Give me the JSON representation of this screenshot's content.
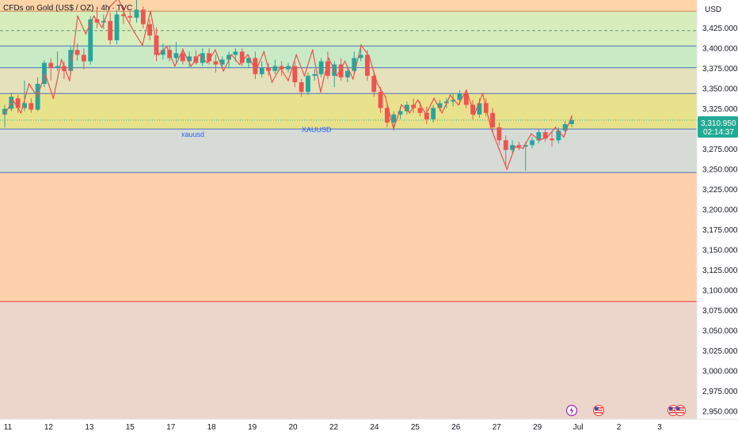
{
  "chart_title": "CFDs on Gold (US$ / OZ) · 4h · TVC",
  "currency": "USD",
  "last_price": "3,310.950",
  "countdown": "02:14:37",
  "zone_labels": [
    "xauusd",
    "XAUUSD"
  ],
  "colors": {
    "up": "#26a69a",
    "down": "#ef5350",
    "price_tag": "#22ab94",
    "level_line": "#2962ff",
    "support_line": "#f23645",
    "zigzag": "#f0504f"
  },
  "chart_data": {
    "type": "candlestick",
    "symbol": "XAUUSD",
    "interval": "4h",
    "ylim": [
      2940,
      3460
    ],
    "y_ticks": [
      "3,425.000",
      "3,400.000",
      "3,375.000",
      "3,350.000",
      "3,325.000",
      "3,300.000",
      "3,275.000",
      "3,250.000",
      "3,225.000",
      "3,200.000",
      "3,175.000",
      "3,150.000",
      "3,125.000",
      "3,100.000",
      "3,075.000",
      "3,050.000",
      "3,025.000",
      "3,000.000",
      "2,975.000",
      "2,950.000"
    ],
    "x_ticks": [
      "11",
      "12",
      "13",
      "15",
      "17",
      "18",
      "19",
      "20",
      "22",
      "24",
      "25",
      "26",
      "27",
      "29",
      "Jul",
      "2",
      "3"
    ],
    "levels": [
      3446,
      3422,
      3403,
      3376,
      3344,
      3300,
      3246,
      3086
    ],
    "zones": [
      {
        "from": 3446,
        "to": 3460,
        "color": "#fdd5a8"
      },
      {
        "from": 3403,
        "to": 3446,
        "color": "#d8edbc"
      },
      {
        "from": 3376,
        "to": 3403,
        "color": "#c8ebc6"
      },
      {
        "from": 3344,
        "to": 3376,
        "color": "#e4e1bb"
      },
      {
        "from": 3300,
        "to": 3344,
        "color": "#e9e28d"
      },
      {
        "from": 3246,
        "to": 3300,
        "color": "#d6dbd5"
      },
      {
        "from": 3086,
        "to": 3246,
        "color": "#fdd1ab"
      },
      {
        "from": 2940,
        "to": 3086,
        "color": "#ecd6cc"
      }
    ],
    "candles": [
      {
        "o": 3318,
        "h": 3330,
        "l": 3302,
        "c": 3325
      },
      {
        "o": 3325,
        "h": 3345,
        "l": 3322,
        "c": 3340
      },
      {
        "o": 3338,
        "h": 3342,
        "l": 3320,
        "c": 3326
      },
      {
        "o": 3326,
        "h": 3360,
        "l": 3322,
        "c": 3332
      },
      {
        "o": 3332,
        "h": 3338,
        "l": 3320,
        "c": 3324
      },
      {
        "o": 3324,
        "h": 3364,
        "l": 3322,
        "c": 3356
      },
      {
        "o": 3356,
        "h": 3385,
        "l": 3352,
        "c": 3382
      },
      {
        "o": 3382,
        "h": 3388,
        "l": 3360,
        "c": 3376
      },
      {
        "o": 3376,
        "h": 3396,
        "l": 3372,
        "c": 3378
      },
      {
        "o": 3378,
        "h": 3384,
        "l": 3362,
        "c": 3372
      },
      {
        "o": 3372,
        "h": 3402,
        "l": 3368,
        "c": 3398
      },
      {
        "o": 3398,
        "h": 3406,
        "l": 3385,
        "c": 3392
      },
      {
        "o": 3392,
        "h": 3400,
        "l": 3374,
        "c": 3384
      },
      {
        "o": 3384,
        "h": 3440,
        "l": 3380,
        "c": 3436
      },
      {
        "o": 3436,
        "h": 3452,
        "l": 3425,
        "c": 3432
      },
      {
        "o": 3432,
        "h": 3442,
        "l": 3424,
        "c": 3434
      },
      {
        "o": 3434,
        "h": 3444,
        "l": 3405,
        "c": 3410
      },
      {
        "o": 3410,
        "h": 3448,
        "l": 3405,
        "c": 3442
      },
      {
        "o": 3442,
        "h": 3452,
        "l": 3430,
        "c": 3440
      },
      {
        "o": 3440,
        "h": 3446,
        "l": 3432,
        "c": 3438
      },
      {
        "o": 3438,
        "h": 3462,
        "l": 3432,
        "c": 3448
      },
      {
        "o": 3448,
        "h": 3452,
        "l": 3425,
        "c": 3430
      },
      {
        "o": 3430,
        "h": 3436,
        "l": 3410,
        "c": 3416
      },
      {
        "o": 3416,
        "h": 3426,
        "l": 3384,
        "c": 3392
      },
      {
        "o": 3392,
        "h": 3406,
        "l": 3386,
        "c": 3398
      },
      {
        "o": 3398,
        "h": 3404,
        "l": 3384,
        "c": 3388
      },
      {
        "o": 3388,
        "h": 3408,
        "l": 3382,
        "c": 3394
      },
      {
        "o": 3394,
        "h": 3400,
        "l": 3380,
        "c": 3384
      },
      {
        "o": 3384,
        "h": 3396,
        "l": 3376,
        "c": 3390
      },
      {
        "o": 3390,
        "h": 3398,
        "l": 3380,
        "c": 3382
      },
      {
        "o": 3382,
        "h": 3400,
        "l": 3378,
        "c": 3394
      },
      {
        "o": 3394,
        "h": 3400,
        "l": 3380,
        "c": 3384
      },
      {
        "o": 3384,
        "h": 3392,
        "l": 3370,
        "c": 3380
      },
      {
        "o": 3380,
        "h": 3390,
        "l": 3374,
        "c": 3386
      },
      {
        "o": 3386,
        "h": 3396,
        "l": 3376,
        "c": 3392
      },
      {
        "o": 3392,
        "h": 3400,
        "l": 3384,
        "c": 3396
      },
      {
        "o": 3396,
        "h": 3400,
        "l": 3378,
        "c": 3382
      },
      {
        "o": 3382,
        "h": 3392,
        "l": 3376,
        "c": 3388
      },
      {
        "o": 3388,
        "h": 3396,
        "l": 3362,
        "c": 3368
      },
      {
        "o": 3368,
        "h": 3384,
        "l": 3364,
        "c": 3376
      },
      {
        "o": 3376,
        "h": 3382,
        "l": 3366,
        "c": 3372
      },
      {
        "o": 3372,
        "h": 3386,
        "l": 3368,
        "c": 3378
      },
      {
        "o": 3378,
        "h": 3384,
        "l": 3366,
        "c": 3374
      },
      {
        "o": 3374,
        "h": 3382,
        "l": 3370,
        "c": 3378
      },
      {
        "o": 3378,
        "h": 3384,
        "l": 3352,
        "c": 3358
      },
      {
        "o": 3358,
        "h": 3362,
        "l": 3340,
        "c": 3346
      },
      {
        "o": 3346,
        "h": 3370,
        "l": 3342,
        "c": 3366
      },
      {
        "o": 3366,
        "h": 3374,
        "l": 3360,
        "c": 3368
      },
      {
        "o": 3368,
        "h": 3388,
        "l": 3364,
        "c": 3384
      },
      {
        "o": 3384,
        "h": 3396,
        "l": 3362,
        "c": 3366
      },
      {
        "o": 3366,
        "h": 3384,
        "l": 3352,
        "c": 3380
      },
      {
        "o": 3380,
        "h": 3388,
        "l": 3360,
        "c": 3364
      },
      {
        "o": 3364,
        "h": 3378,
        "l": 3358,
        "c": 3372
      },
      {
        "o": 3372,
        "h": 3396,
        "l": 3368,
        "c": 3388
      },
      {
        "o": 3388,
        "h": 3404,
        "l": 3384,
        "c": 3392
      },
      {
        "o": 3392,
        "h": 3398,
        "l": 3360,
        "c": 3366
      },
      {
        "o": 3366,
        "h": 3372,
        "l": 3340,
        "c": 3346
      },
      {
        "o": 3346,
        "h": 3352,
        "l": 3320,
        "c": 3326
      },
      {
        "o": 3326,
        "h": 3332,
        "l": 3302,
        "c": 3308
      },
      {
        "o": 3308,
        "h": 3322,
        "l": 3298,
        "c": 3318
      },
      {
        "o": 3318,
        "h": 3328,
        "l": 3312,
        "c": 3322
      },
      {
        "o": 3322,
        "h": 3334,
        "l": 3318,
        "c": 3330
      },
      {
        "o": 3330,
        "h": 3338,
        "l": 3320,
        "c": 3326
      },
      {
        "o": 3326,
        "h": 3334,
        "l": 3316,
        "c": 3320
      },
      {
        "o": 3320,
        "h": 3328,
        "l": 3306,
        "c": 3312
      },
      {
        "o": 3312,
        "h": 3330,
        "l": 3308,
        "c": 3326
      },
      {
        "o": 3326,
        "h": 3336,
        "l": 3322,
        "c": 3332
      },
      {
        "o": 3332,
        "h": 3338,
        "l": 3326,
        "c": 3334
      },
      {
        "o": 3334,
        "h": 3344,
        "l": 3328,
        "c": 3336
      },
      {
        "o": 3336,
        "h": 3348,
        "l": 3330,
        "c": 3344
      },
      {
        "o": 3344,
        "h": 3346,
        "l": 3326,
        "c": 3330
      },
      {
        "o": 3330,
        "h": 3336,
        "l": 3312,
        "c": 3318
      },
      {
        "o": 3318,
        "h": 3338,
        "l": 3314,
        "c": 3332
      },
      {
        "o": 3332,
        "h": 3338,
        "l": 3316,
        "c": 3320
      },
      {
        "o": 3320,
        "h": 3326,
        "l": 3296,
        "c": 3302
      },
      {
        "o": 3302,
        "h": 3308,
        "l": 3280,
        "c": 3286
      },
      {
        "o": 3286,
        "h": 3292,
        "l": 3254,
        "c": 3274
      },
      {
        "o": 3274,
        "h": 3286,
        "l": 3270,
        "c": 3280
      },
      {
        "o": 3280,
        "h": 3284,
        "l": 3274,
        "c": 3278
      },
      {
        "o": 3278,
        "h": 3284,
        "l": 3248,
        "c": 3280
      },
      {
        "o": 3280,
        "h": 3290,
        "l": 3276,
        "c": 3286
      },
      {
        "o": 3286,
        "h": 3300,
        "l": 3282,
        "c": 3296
      },
      {
        "o": 3296,
        "h": 3300,
        "l": 3284,
        "c": 3288
      },
      {
        "o": 3288,
        "h": 3296,
        "l": 3278,
        "c": 3286
      },
      {
        "o": 3286,
        "h": 3302,
        "l": 3282,
        "c": 3298
      },
      {
        "o": 3298,
        "h": 3310,
        "l": 3292,
        "c": 3306
      },
      {
        "o": 3306,
        "h": 3316,
        "l": 3302,
        "c": 3311
      }
    ],
    "zigzag": [
      3318,
      3336,
      3320,
      3356,
      3340,
      3368,
      3338,
      3386,
      3360,
      3440,
      3418,
      3440,
      3426,
      3452,
      3462,
      3438,
      3420,
      3404,
      3446,
      3392,
      3402,
      3378,
      3398,
      3378,
      3392,
      3382,
      3398,
      3372,
      3392,
      3380,
      3392,
      3372,
      3396,
      3358,
      3376,
      3360,
      3392,
      3366,
      3398,
      3346,
      3388,
      3366,
      3384,
      3362,
      3404,
      3390,
      3356,
      3340,
      3300,
      3330,
      3320,
      3336,
      3318,
      3338,
      3320,
      3342,
      3330,
      3348,
      3318,
      3344,
      3302,
      3276,
      3250,
      3278,
      3276,
      3294,
      3286,
      3290,
      3302,
      3290,
      3316
    ]
  }
}
